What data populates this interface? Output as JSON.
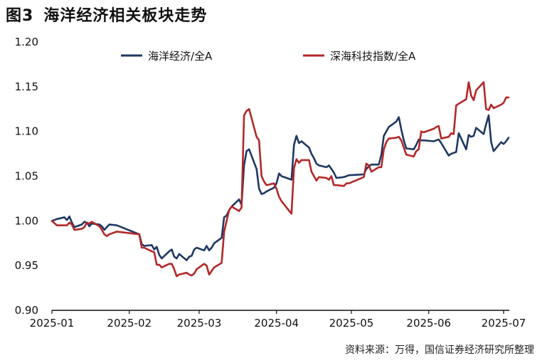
{
  "header": {
    "figure_label": "图3",
    "title": "海洋经济相关板块走势"
  },
  "source": "资料来源：万得，国信证券经济研究所整理",
  "chart_data": {
    "type": "line",
    "ylim": [
      0.9,
      1.2
    ],
    "y_ticks": [
      "1.20",
      "1.15",
      "1.10",
      "1.05",
      "1.00",
      "0.95",
      "0.90"
    ],
    "x_ticks": [
      "2025-01",
      "2025-02",
      "2025-03",
      "2025-04",
      "2025-05",
      "2025-06",
      "2025-07"
    ],
    "x_tick_dates": [
      "2025-01-01",
      "2025-02-01",
      "2025-03-01",
      "2025-04-01",
      "2025-05-01",
      "2025-06-01",
      "2025-07-01"
    ],
    "x_range": [
      "2025-01-01",
      "2025-07-01"
    ],
    "legend_position": "top",
    "grid": false,
    "series": [
      {
        "name": "海洋经济/全A",
        "color": "#1f3864",
        "x": [
          "2025-01-01",
          "2025-01-03",
          "2025-01-06",
          "2025-01-07",
          "2025-01-08",
          "2025-01-09",
          "2025-01-10",
          "2025-01-13",
          "2025-01-14",
          "2025-01-15",
          "2025-01-16",
          "2025-01-17",
          "2025-01-20",
          "2025-01-21",
          "2025-01-22",
          "2025-01-23",
          "2025-01-24",
          "2025-01-27",
          "2025-02-05",
          "2025-02-06",
          "2025-02-07",
          "2025-02-10",
          "2025-02-11",
          "2025-02-12",
          "2025-02-13",
          "2025-02-14",
          "2025-02-17",
          "2025-02-18",
          "2025-02-19",
          "2025-02-20",
          "2025-02-21",
          "2025-02-24",
          "2025-02-25",
          "2025-02-26",
          "2025-02-27",
          "2025-02-28",
          "2025-03-03",
          "2025-03-04",
          "2025-03-05",
          "2025-03-06",
          "2025-03-07",
          "2025-03-10",
          "2025-03-11",
          "2025-03-12",
          "2025-03-13",
          "2025-03-14",
          "2025-03-17",
          "2025-03-18",
          "2025-03-19",
          "2025-03-20",
          "2025-03-21",
          "2025-03-24",
          "2025-03-25",
          "2025-03-26",
          "2025-03-27",
          "2025-03-28",
          "2025-03-31",
          "2025-04-01",
          "2025-04-02",
          "2025-04-03",
          "2025-04-07",
          "2025-04-08",
          "2025-04-09",
          "2025-04-10",
          "2025-04-11",
          "2025-04-14",
          "2025-04-15",
          "2025-04-16",
          "2025-04-17",
          "2025-04-18",
          "2025-04-21",
          "2025-04-22",
          "2025-04-23",
          "2025-04-24",
          "2025-04-25",
          "2025-04-28",
          "2025-04-29",
          "2025-04-30",
          "2025-05-06",
          "2025-05-07",
          "2025-05-08",
          "2025-05-09",
          "2025-05-12",
          "2025-05-13",
          "2025-05-14",
          "2025-05-15",
          "2025-05-16",
          "2025-05-19",
          "2025-05-20",
          "2025-05-21",
          "2025-05-22",
          "2025-05-23",
          "2025-05-26",
          "2025-05-27",
          "2025-05-28",
          "2025-05-29",
          "2025-05-30",
          "2025-06-03",
          "2025-06-04",
          "2025-06-05",
          "2025-06-06",
          "2025-06-09",
          "2025-06-10",
          "2025-06-11",
          "2025-06-12",
          "2025-06-13",
          "2025-06-16",
          "2025-06-17",
          "2025-06-18",
          "2025-06-19",
          "2025-06-20",
          "2025-06-23",
          "2025-06-24",
          "2025-06-25",
          "2025-06-26",
          "2025-06-27",
          "2025-06-30",
          "2025-07-01",
          "2025-07-02",
          "2025-07-03"
        ],
        "values": [
          1.0,
          1.002,
          1.004,
          1.001,
          1.005,
          0.998,
          0.993,
          0.996,
          0.999,
          0.998,
          0.994,
          0.997,
          0.996,
          0.994,
          0.99,
          0.993,
          0.996,
          0.995,
          0.985,
          0.974,
          0.972,
          0.973,
          0.968,
          0.971,
          0.962,
          0.958,
          0.966,
          0.968,
          0.96,
          0.958,
          0.963,
          0.956,
          0.96,
          0.961,
          0.968,
          0.97,
          0.967,
          0.972,
          0.967,
          0.97,
          0.975,
          0.981,
          1.004,
          1.006,
          1.012,
          1.016,
          1.024,
          1.018,
          1.062,
          1.078,
          1.08,
          1.058,
          1.036,
          1.03,
          1.031,
          1.033,
          1.037,
          1.042,
          1.053,
          1.05,
          1.046,
          1.085,
          1.095,
          1.087,
          1.089,
          1.082,
          1.075,
          1.07,
          1.064,
          1.062,
          1.06,
          1.062,
          1.058,
          1.054,
          1.048,
          1.049,
          1.05,
          1.051,
          1.052,
          1.058,
          1.061,
          1.063,
          1.063,
          1.074,
          1.095,
          1.1,
          1.105,
          1.111,
          1.116,
          1.102,
          1.09,
          1.081,
          1.08,
          1.085,
          1.091,
          1.09,
          1.09,
          1.089,
          1.09,
          1.091,
          1.087,
          1.073,
          1.075,
          1.076,
          1.077,
          1.098,
          1.08,
          1.096,
          1.094,
          1.095,
          1.104,
          1.097,
          1.108,
          1.118,
          1.088,
          1.078,
          1.088,
          1.086,
          1.089,
          1.093
        ]
      },
      {
        "name": "深海科技指数/全A",
        "color": "#b32828",
        "x": [
          "2025-01-01",
          "2025-01-03",
          "2025-01-06",
          "2025-01-07",
          "2025-01-08",
          "2025-01-09",
          "2025-01-10",
          "2025-01-13",
          "2025-01-14",
          "2025-01-15",
          "2025-01-16",
          "2025-01-17",
          "2025-01-20",
          "2025-01-21",
          "2025-01-22",
          "2025-01-23",
          "2025-01-24",
          "2025-01-27",
          "2025-02-05",
          "2025-02-06",
          "2025-02-07",
          "2025-02-10",
          "2025-02-11",
          "2025-02-12",
          "2025-02-13",
          "2025-02-14",
          "2025-02-17",
          "2025-02-18",
          "2025-02-19",
          "2025-02-20",
          "2025-02-21",
          "2025-02-24",
          "2025-02-25",
          "2025-02-26",
          "2025-02-27",
          "2025-02-28",
          "2025-03-03",
          "2025-03-04",
          "2025-03-05",
          "2025-03-06",
          "2025-03-07",
          "2025-03-10",
          "2025-03-11",
          "2025-03-12",
          "2025-03-13",
          "2025-03-14",
          "2025-03-17",
          "2025-03-18",
          "2025-03-19",
          "2025-03-20",
          "2025-03-21",
          "2025-03-24",
          "2025-03-25",
          "2025-03-26",
          "2025-03-27",
          "2025-03-28",
          "2025-03-31",
          "2025-04-01",
          "2025-04-02",
          "2025-04-03",
          "2025-04-07",
          "2025-04-08",
          "2025-04-09",
          "2025-04-10",
          "2025-04-11",
          "2025-04-14",
          "2025-04-15",
          "2025-04-16",
          "2025-04-17",
          "2025-04-18",
          "2025-04-21",
          "2025-04-22",
          "2025-04-23",
          "2025-04-24",
          "2025-04-25",
          "2025-04-28",
          "2025-04-29",
          "2025-04-30",
          "2025-05-06",
          "2025-05-07",
          "2025-05-08",
          "2025-05-09",
          "2025-05-12",
          "2025-05-13",
          "2025-05-14",
          "2025-05-15",
          "2025-05-16",
          "2025-05-19",
          "2025-05-20",
          "2025-05-21",
          "2025-05-22",
          "2025-05-23",
          "2025-05-26",
          "2025-05-27",
          "2025-05-28",
          "2025-05-29",
          "2025-05-30",
          "2025-06-03",
          "2025-06-04",
          "2025-06-05",
          "2025-06-06",
          "2025-06-09",
          "2025-06-10",
          "2025-06-11",
          "2025-06-12",
          "2025-06-13",
          "2025-06-16",
          "2025-06-17",
          "2025-06-18",
          "2025-06-19",
          "2025-06-20",
          "2025-06-23",
          "2025-06-24",
          "2025-06-25",
          "2025-06-26",
          "2025-06-27",
          "2025-06-30",
          "2025-07-01",
          "2025-07-02",
          "2025-07-03"
        ],
        "values": [
          1.0,
          0.995,
          0.995,
          0.995,
          0.998,
          0.996,
          0.99,
          0.991,
          0.993,
          0.998,
          0.997,
          0.999,
          0.994,
          0.99,
          0.985,
          0.983,
          0.985,
          0.988,
          0.985,
          0.97,
          0.97,
          0.966,
          0.965,
          0.951,
          0.951,
          0.948,
          0.952,
          0.952,
          0.946,
          0.938,
          0.94,
          0.942,
          0.94,
          0.939,
          0.941,
          0.946,
          0.952,
          0.95,
          0.94,
          0.944,
          0.948,
          0.953,
          0.988,
          1.0,
          1.012,
          1.016,
          1.011,
          1.015,
          1.118,
          1.123,
          1.125,
          1.094,
          1.09,
          1.05,
          1.044,
          1.04,
          1.042,
          1.036,
          1.027,
          1.022,
          1.008,
          1.059,
          1.069,
          1.065,
          1.068,
          1.068,
          1.055,
          1.05,
          1.045,
          1.049,
          1.048,
          1.046,
          1.05,
          1.04,
          1.04,
          1.039,
          1.042,
          1.042,
          1.049,
          1.064,
          1.062,
          1.055,
          1.06,
          1.06,
          1.08,
          1.088,
          1.092,
          1.093,
          1.094,
          1.09,
          1.082,
          1.074,
          1.072,
          1.078,
          1.08,
          1.1,
          1.099,
          1.103,
          1.105,
          1.106,
          1.092,
          1.094,
          1.098,
          1.097,
          1.129,
          1.131,
          1.136,
          1.155,
          1.14,
          1.135,
          1.146,
          1.155,
          1.125,
          1.124,
          1.13,
          1.126,
          1.13,
          1.132,
          1.138,
          1.138
        ]
      }
    ]
  }
}
